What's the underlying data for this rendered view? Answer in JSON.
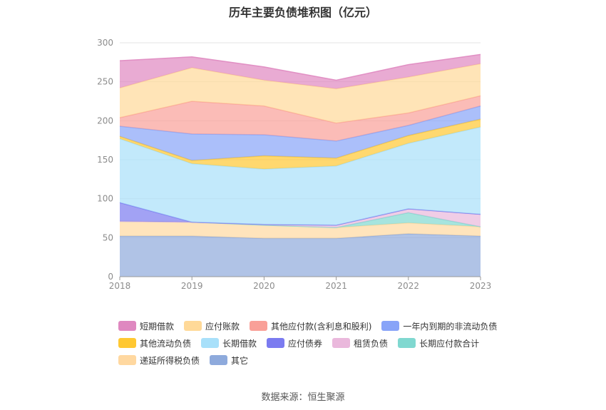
{
  "title": "历年主要负债堆积图（亿元）",
  "source": "数据来源：恒生聚源",
  "chart_data": {
    "type": "area",
    "stacked": true,
    "x": [
      "2018",
      "2019",
      "2020",
      "2021",
      "2022",
      "2023"
    ],
    "ylim": [
      0,
      300
    ],
    "yticks": [
      0,
      50,
      100,
      150,
      200,
      250,
      300
    ],
    "grid": true,
    "legend_position": "bottom",
    "series": [
      {
        "name": "其它",
        "color": "#8eaadc",
        "values": [
          52,
          52,
          49,
          49,
          55,
          52
        ]
      },
      {
        "name": "递延所得税负债",
        "color": "#ffd8a0",
        "values": [
          19,
          18,
          17,
          14,
          14,
          12
        ]
      },
      {
        "name": "长期应付款合计",
        "color": "#80d8d0",
        "values": [
          0,
          0,
          0,
          0,
          13,
          0
        ]
      },
      {
        "name": "租赁负债",
        "color": "#eab8dc",
        "values": [
          0,
          0,
          1,
          3,
          5,
          16
        ]
      },
      {
        "name": "应付债券",
        "color": "#7b7bf0",
        "values": [
          24,
          0,
          0,
          0,
          0,
          0
        ]
      },
      {
        "name": "长期借款",
        "color": "#a8e0fa",
        "values": [
          82,
          75,
          71,
          76,
          84,
          112
        ]
      },
      {
        "name": "其他流动负债",
        "color": "#ffc832",
        "values": [
          3,
          4,
          17,
          10,
          10,
          10
        ]
      },
      {
        "name": "一年内到期的非流动负债",
        "color": "#88a4f8",
        "values": [
          13,
          34,
          27,
          22,
          13,
          17
        ]
      },
      {
        "name": "其他应付款(含利息和股利)",
        "color": "#f9a098",
        "values": [
          11,
          42,
          37,
          23,
          16,
          13
        ]
      },
      {
        "name": "应付账款",
        "color": "#ffd998",
        "values": [
          38,
          43,
          33,
          44,
          46,
          41
        ]
      },
      {
        "name": "短期借款",
        "color": "#df88c0",
        "values": [
          35,
          14,
          17,
          11,
          16,
          12
        ]
      }
    ]
  },
  "legend_rows": [
    [
      {
        "label": "短期借款",
        "color": "#df88c0"
      },
      {
        "label": "应付账款",
        "color": "#ffd998"
      },
      {
        "label": "其他应付款(含利息和股利)",
        "color": "#f9a098"
      },
      {
        "label": "一年内到期的非流动负债",
        "color": "#88a4f8"
      }
    ],
    [
      {
        "label": "其他流动负债",
        "color": "#ffc832"
      },
      {
        "label": "长期借款",
        "color": "#a8e0fa"
      },
      {
        "label": "应付债券",
        "color": "#7b7bf0"
      },
      {
        "label": "租赁负债",
        "color": "#eab8dc"
      },
      {
        "label": "长期应付款合计",
        "color": "#80d8d0"
      }
    ],
    [
      {
        "label": "递延所得税负债",
        "color": "#ffd8a0"
      },
      {
        "label": "其它",
        "color": "#8eaadc"
      }
    ]
  ]
}
